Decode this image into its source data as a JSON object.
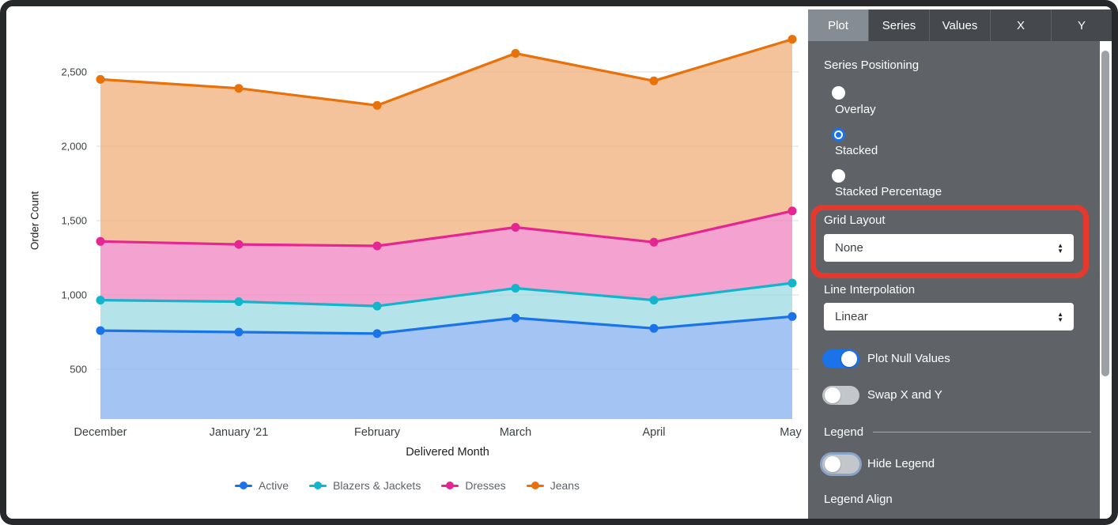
{
  "chart_data": {
    "type": "area",
    "stacking": "stacked",
    "title": "",
    "xlabel": "Delivered Month",
    "ylabel": "Order Count",
    "categories": [
      "December",
      "January '21",
      "February",
      "March",
      "April",
      "May"
    ],
    "series": [
      {
        "name": "Active",
        "color": "#1a73e8",
        "fill": "#a4c5f3",
        "values": [
          760,
          750,
          740,
          845,
          775,
          855
        ]
      },
      {
        "name": "Blazers & Jackets",
        "color": "#12b5cb",
        "fill": "#b5e3ea",
        "values": [
          205,
          205,
          185,
          200,
          190,
          225
        ]
      },
      {
        "name": "Dresses",
        "color": "#e52592",
        "fill": "#f4a3d1",
        "values": [
          395,
          385,
          405,
          410,
          390,
          485
        ]
      },
      {
        "name": "Jeans",
        "color": "#e8710a",
        "fill": "#f5c39b",
        "values": [
          1090,
          1050,
          945,
          1170,
          1085,
          1155
        ]
      }
    ],
    "stacked_totals": {
      "Active": [
        760,
        750,
        740,
        845,
        775,
        855
      ],
      "Blazers & Jackets": [
        965,
        955,
        925,
        1045,
        965,
        1080
      ],
      "Dresses": [
        1360,
        1340,
        1330,
        1455,
        1355,
        1565
      ],
      "Jeans": [
        2450,
        2390,
        2275,
        2625,
        2440,
        2720
      ]
    },
    "y_ticks": [
      500,
      1000,
      1500,
      2000,
      2500
    ],
    "ylim_rendered": [
      165,
      2800
    ],
    "grid": "horizontal",
    "legend_position": "bottom-center"
  },
  "panel": {
    "tabs": [
      {
        "label": "Plot",
        "active": true
      },
      {
        "label": "Series",
        "active": false
      },
      {
        "label": "Values",
        "active": false
      },
      {
        "label": "X",
        "active": false
      },
      {
        "label": "Y",
        "active": false
      }
    ],
    "series_positioning": {
      "label": "Series Positioning",
      "options": [
        {
          "label": "Overlay",
          "selected": false
        },
        {
          "label": "Stacked",
          "selected": true
        },
        {
          "label": "Stacked Percentage",
          "selected": false
        }
      ]
    },
    "grid_layout": {
      "label": "Grid Layout",
      "value": "None",
      "highlighted": true
    },
    "line_interpolation": {
      "label": "Line Interpolation",
      "value": "Linear"
    },
    "toggles": [
      {
        "label": "Plot Null Values",
        "on": true,
        "focus": false
      },
      {
        "label": "Swap X and Y",
        "on": false,
        "focus": false
      }
    ],
    "legend_section": {
      "header": "Legend",
      "hide_legend": {
        "label": "Hide Legend",
        "on": false,
        "focus": true
      },
      "legend_align_label": "Legend Align"
    }
  },
  "annotation": {
    "highlight_color": "#e5392d",
    "highlight_target": "grid-layout"
  }
}
